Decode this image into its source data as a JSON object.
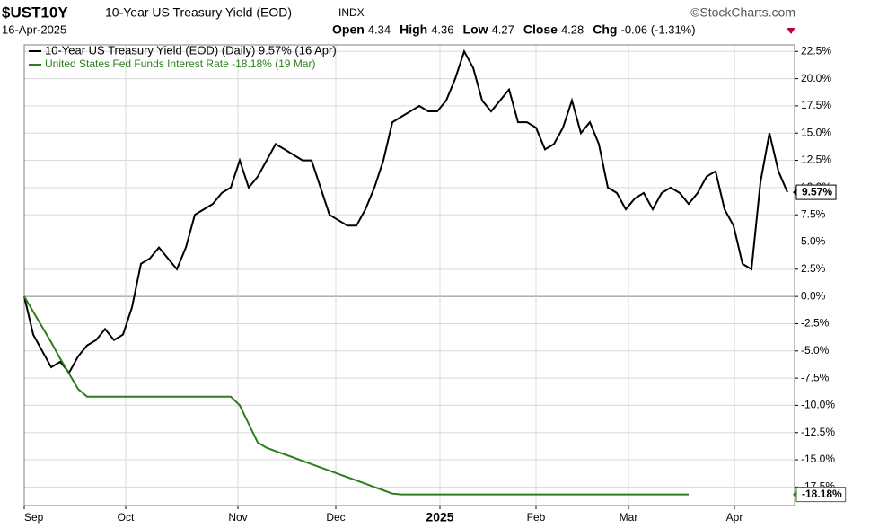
{
  "chart_data": {
    "type": "line",
    "symbol": "$UST10Y",
    "title": "10-Year US Treasury Yield (EOD)",
    "exchange": "INDX",
    "source": "©StockCharts.com",
    "date": "16-Apr-2025",
    "quote": [
      {
        "label": "Open",
        "text": "4.34"
      },
      {
        "label": "High",
        "text": "4.36"
      },
      {
        "label": "Low",
        "text": "4.27"
      },
      {
        "label": "Close",
        "text": "4.28"
      },
      {
        "label": "Chg",
        "text": "-0.06 (-1.31%)"
      }
    ],
    "series": [
      {
        "name": "10-Year US Treasury Yield (EOD) (Daily) 9.57% (16 Apr)",
        "color": "#000000",
        "end_label": "9.57%",
        "values": [
          0,
          -3.5,
          -5,
          -6.5,
          -6,
          -7,
          -5.5,
          -4.5,
          -4,
          -3,
          -4,
          -3.5,
          -1,
          3,
          3.5,
          4.5,
          3.5,
          2.5,
          4.5,
          7.5,
          8,
          8.5,
          9.5,
          10,
          12.5,
          10,
          11,
          12.5,
          14,
          13.5,
          13,
          12.5,
          12.5,
          10,
          7.5,
          7,
          6.5,
          6.5,
          8,
          10,
          12.5,
          16,
          16.5,
          17,
          17.5,
          17,
          17,
          18,
          20,
          22.5,
          21,
          18,
          17,
          18,
          19,
          16,
          16,
          15.5,
          13.5,
          14,
          15.5,
          18,
          15,
          16,
          14,
          10,
          9.5,
          8,
          9,
          9.5,
          8,
          9.5,
          10,
          9.5,
          8.5,
          9.5,
          11,
          11.5,
          8,
          6.5,
          3,
          2.5,
          10.5,
          15,
          11.5,
          9.57
        ]
      },
      {
        "name": "United States Fed Funds Interest Rate -18.18% (19 Mar)",
        "color": "#2e7d1e",
        "end_label": "-18.18%",
        "values": [
          0,
          -1.4,
          -2.8,
          -4.2,
          -5.7,
          -7.1,
          -8.5,
          -9.2,
          -9.2,
          -9.2,
          -9.2,
          -9.2,
          -9.2,
          -9.2,
          -9.2,
          -9.2,
          -9.2,
          -9.2,
          -9.2,
          -9.2,
          -9.2,
          -9.2,
          -9.2,
          -9.2,
          -10.0,
          -11.7,
          -13.4,
          -13.9,
          -14.2,
          -14.5,
          -14.8,
          -15.1,
          -15.4,
          -15.7,
          -16.0,
          -16.3,
          -16.6,
          -16.9,
          -17.2,
          -17.5,
          -17.8,
          -18.1,
          -18.18,
          -18.18,
          -18.18,
          -18.18,
          -18.18,
          -18.18,
          -18.18,
          -18.18,
          -18.18,
          -18.18,
          -18.18,
          -18.18,
          -18.18,
          -18.18,
          -18.18,
          -18.18,
          -18.18,
          -18.18,
          -18.18,
          -18.18,
          -18.18,
          -18.18,
          -18.18,
          -18.18,
          -18.18,
          -18.18,
          -18.18,
          -18.18,
          -18.18,
          -18.18,
          -18.18,
          -18.18,
          -18.18,
          null,
          null,
          null,
          null,
          null,
          null,
          null,
          null,
          null,
          null,
          null
        ]
      }
    ],
    "xlim": [
      0,
      85.8
    ],
    "xticks": [
      {
        "value": 0,
        "label": "Sep"
      },
      {
        "value": 11.3,
        "label": "Oct"
      },
      {
        "value": 23.8,
        "label": "Nov"
      },
      {
        "value": 34.7,
        "label": "Dec"
      },
      {
        "value": 46.3,
        "label": "2025"
      },
      {
        "value": 57,
        "label": "Feb"
      },
      {
        "value": 67.3,
        "label": "Mar"
      },
      {
        "value": 79.1,
        "label": "Apr"
      }
    ],
    "ylim": [
      -19.2,
      23.1
    ],
    "yticks": [
      {
        "value": 22.5,
        "label": "22.5%"
      },
      {
        "value": 20,
        "label": "20.0%"
      },
      {
        "value": 17.5,
        "label": "17.5%"
      },
      {
        "value": 15,
        "label": "15.0%"
      },
      {
        "value": 12.5,
        "label": "12.5%"
      },
      {
        "value": 10,
        "label": "10.0%"
      },
      {
        "value": 7.5,
        "label": "7.5%"
      },
      {
        "value": 5,
        "label": "5.0%"
      },
      {
        "value": 2.5,
        "label": "2.5%"
      },
      {
        "value": 0,
        "label": "0.0%"
      },
      {
        "value": -2.5,
        "label": "-2.5%"
      },
      {
        "value": -5,
        "label": "-5.0%"
      },
      {
        "value": -7.5,
        "label": "-7.5%"
      },
      {
        "value": -10,
        "label": "-10.0%"
      },
      {
        "value": -12.5,
        "label": "-12.5%"
      },
      {
        "value": -15,
        "label": "-15.0%"
      },
      {
        "value": -17.5,
        "label": "-17.5%"
      }
    ],
    "grid": true
  }
}
